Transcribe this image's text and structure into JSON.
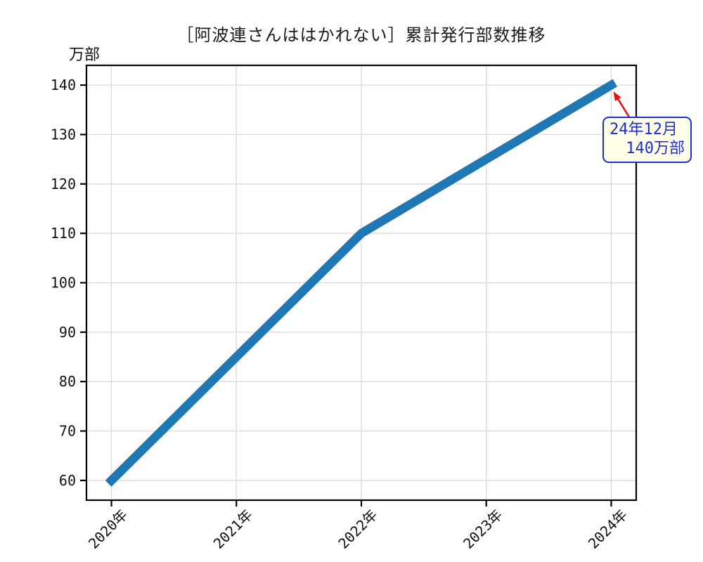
{
  "page": {
    "background": "#ffffff"
  },
  "chart": {
    "title": "［阿波連さんははかれない］累計発行部数推移",
    "unit_label": "万部",
    "annotation": {
      "line1": "24年12月",
      "line2": "140万部"
    }
  },
  "chart_data": {
    "type": "line",
    "title": "［阿波連さんははかれない］累計発行部数推移",
    "ylabel": "万部",
    "xlabel": "",
    "x": [
      2020,
      2022,
      2024
    ],
    "y": [
      60,
      110,
      140
    ],
    "x_ticks": [
      2020,
      2021,
      2022,
      2023,
      2024
    ],
    "x_tick_labels": [
      "2020年",
      "2021年",
      "2022年",
      "2023年",
      "2024年"
    ],
    "y_ticks": [
      60,
      70,
      80,
      90,
      100,
      110,
      120,
      130,
      140
    ],
    "xlim": [
      2019.8,
      2024.2
    ],
    "ylim": [
      56,
      144
    ],
    "grid": true,
    "legend": false,
    "annotation": {
      "text": "24年12月\n140万部",
      "xy": [
        2024,
        140
      ]
    },
    "colors": {
      "line": "#1f77b4",
      "grid": "#d9d9d9",
      "spine": "#000000",
      "tick_label": "#111111",
      "arrow": "#e81212",
      "annotation_fg": "#1c2fd0",
      "annotation_bg": "#fffde7"
    },
    "line_width": 12.5
  }
}
